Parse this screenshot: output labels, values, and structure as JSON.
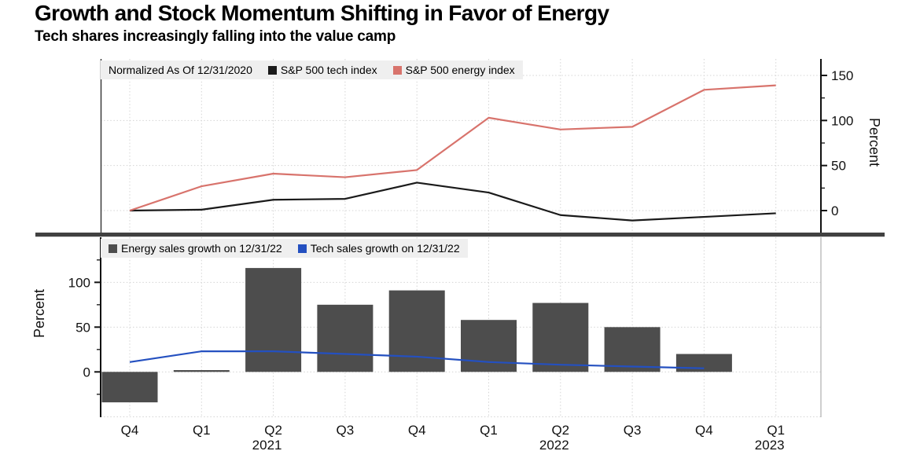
{
  "header": {
    "title": "Growth and Stock Momentum Shifting in Favor of Energy",
    "subtitle": "Tech shares increasingly falling into the value camp"
  },
  "colors": {
    "tech_index_line": "#1a1a1a",
    "energy_index_line": "#d8736c",
    "energy_sales_bars": "#4d4d4d",
    "tech_sales_line": "#2450c0",
    "legend_background": "#efefef",
    "gridline": "#d4d4d4",
    "separator": "#414141"
  },
  "chart_data": [
    {
      "type": "line",
      "panel": "top",
      "legend": [
        {
          "label": "Normalized As Of 12/31/2020",
          "swatch": null
        },
        {
          "label": "S&P 500 tech index",
          "swatch": "#1a1a1a"
        },
        {
          "label": "S&P 500 energy index",
          "swatch": "#d8736c"
        }
      ],
      "x": [
        "Q4 2020",
        "Q1 2021",
        "Q2 2021",
        "Q3 2021",
        "Q4 2021",
        "Q1 2022",
        "Q2 2022",
        "Q3 2022",
        "Q4 2022",
        "Q1 2023"
      ],
      "series": [
        {
          "name": "S&P 500 tech index",
          "color": "#1a1a1a",
          "values": [
            0,
            1,
            12,
            13,
            31,
            20,
            -5,
            -11,
            -7,
            -3
          ]
        },
        {
          "name": "S&P 500 energy index",
          "color": "#d8736c",
          "values": [
            0,
            27,
            41,
            37,
            45,
            103,
            90,
            93,
            134,
            139
          ]
        }
      ],
      "ylabel": "Percent",
      "y_axis_side": "right",
      "yticks": [
        0,
        50,
        100,
        150
      ],
      "yticks_minor": [
        25,
        75,
        125
      ],
      "ylim": [
        -24.4,
        168.3
      ],
      "grid": true,
      "legend_position": "top-left"
    },
    {
      "type": "bar",
      "panel": "bottom",
      "legend": [
        {
          "label": "Energy sales growth on 12/31/22",
          "swatch": "#4d4d4d"
        },
        {
          "label": "Tech sales growth on 12/31/22",
          "swatch": "#2450c0"
        }
      ],
      "categories": [
        "Q4",
        "Q1",
        "Q2",
        "Q3",
        "Q4",
        "Q1",
        "Q2",
        "Q3",
        "Q4",
        "Q1"
      ],
      "year_labels": [
        {
          "index": 2,
          "label": "2021"
        },
        {
          "index": 6,
          "label": "2022"
        },
        {
          "index": 9,
          "label": "2023"
        }
      ],
      "series": [
        {
          "name": "Energy sales growth on 12/31/22",
          "type": "bar",
          "color": "#4d4d4d",
          "values": [
            -34,
            2,
            116,
            75,
            91,
            58,
            77,
            50,
            20,
            null
          ]
        },
        {
          "name": "Tech sales growth on 12/31/22",
          "type": "line",
          "color": "#2450c0",
          "values": [
            11,
            23,
            23,
            20,
            17,
            11,
            8,
            6,
            4,
            null
          ]
        }
      ],
      "ylabel": "Percent",
      "y_axis_side": "left",
      "yticks": [
        0,
        50,
        100
      ],
      "yticks_minor": [
        -25,
        25,
        75,
        125
      ],
      "ylim": [
        -50.6,
        150.3
      ],
      "grid": true
    }
  ]
}
